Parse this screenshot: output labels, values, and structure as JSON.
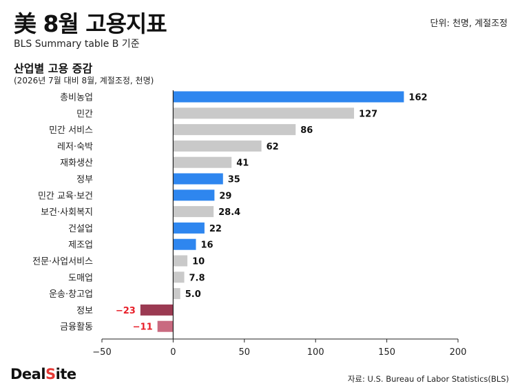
{
  "header": {
    "title": "美 8월 고용지표",
    "subtitle": "BLS Summary table B 기준",
    "unit_note": "단위: 천명, 계절조정",
    "section_title": "산업별 고용 증감",
    "section_subtitle": "(2026년 7월 대비 8월, 계절조정, 천명)"
  },
  "footer": {
    "brand_main": "Deal",
    "brand_accent": "S",
    "brand_rest": "ite",
    "source": "자료: U.S. Bureau of Labor Statistics(BLS)"
  },
  "colors": {
    "highlight": "#2e86ef",
    "neutral": "#c9c9c9",
    "negative_dark": "#9b3a52",
    "negative_light": "#c96a80",
    "negative_label": "#e8202a"
  },
  "chart_data": {
    "type": "bar",
    "orientation": "horizontal",
    "categories": [
      "총비농업",
      "민간",
      "민간 서비스",
      "레저·숙박",
      "재화생산",
      "정부",
      "민간 교육·보건",
      "보건·사회복지",
      "건설업",
      "제조업",
      "전문·사업서비스",
      "도매업",
      "운송·창고업",
      "정보",
      "금융활동"
    ],
    "values": [
      162,
      127,
      86,
      62,
      41,
      35,
      29,
      28.4,
      22,
      16,
      10,
      7.8,
      5.0,
      -23,
      -11
    ],
    "value_labels": [
      "162",
      "127",
      "86",
      "62",
      "41",
      "35",
      "29",
      "28.4",
      "22",
      "16",
      "10",
      "7.8",
      "5.0",
      "−23",
      "−11"
    ],
    "bar_colors": [
      "highlight",
      "neutral",
      "neutral",
      "neutral",
      "neutral",
      "highlight",
      "highlight",
      "neutral",
      "highlight",
      "highlight",
      "neutral",
      "neutral",
      "neutral",
      "negative_dark",
      "negative_light"
    ],
    "xlim": [
      -50,
      200
    ],
    "xticks": [
      -50,
      0,
      50,
      100,
      150,
      200
    ],
    "xtick_labels": [
      "−50",
      "0",
      "50",
      "100",
      "150",
      "200"
    ],
    "grid": false
  }
}
